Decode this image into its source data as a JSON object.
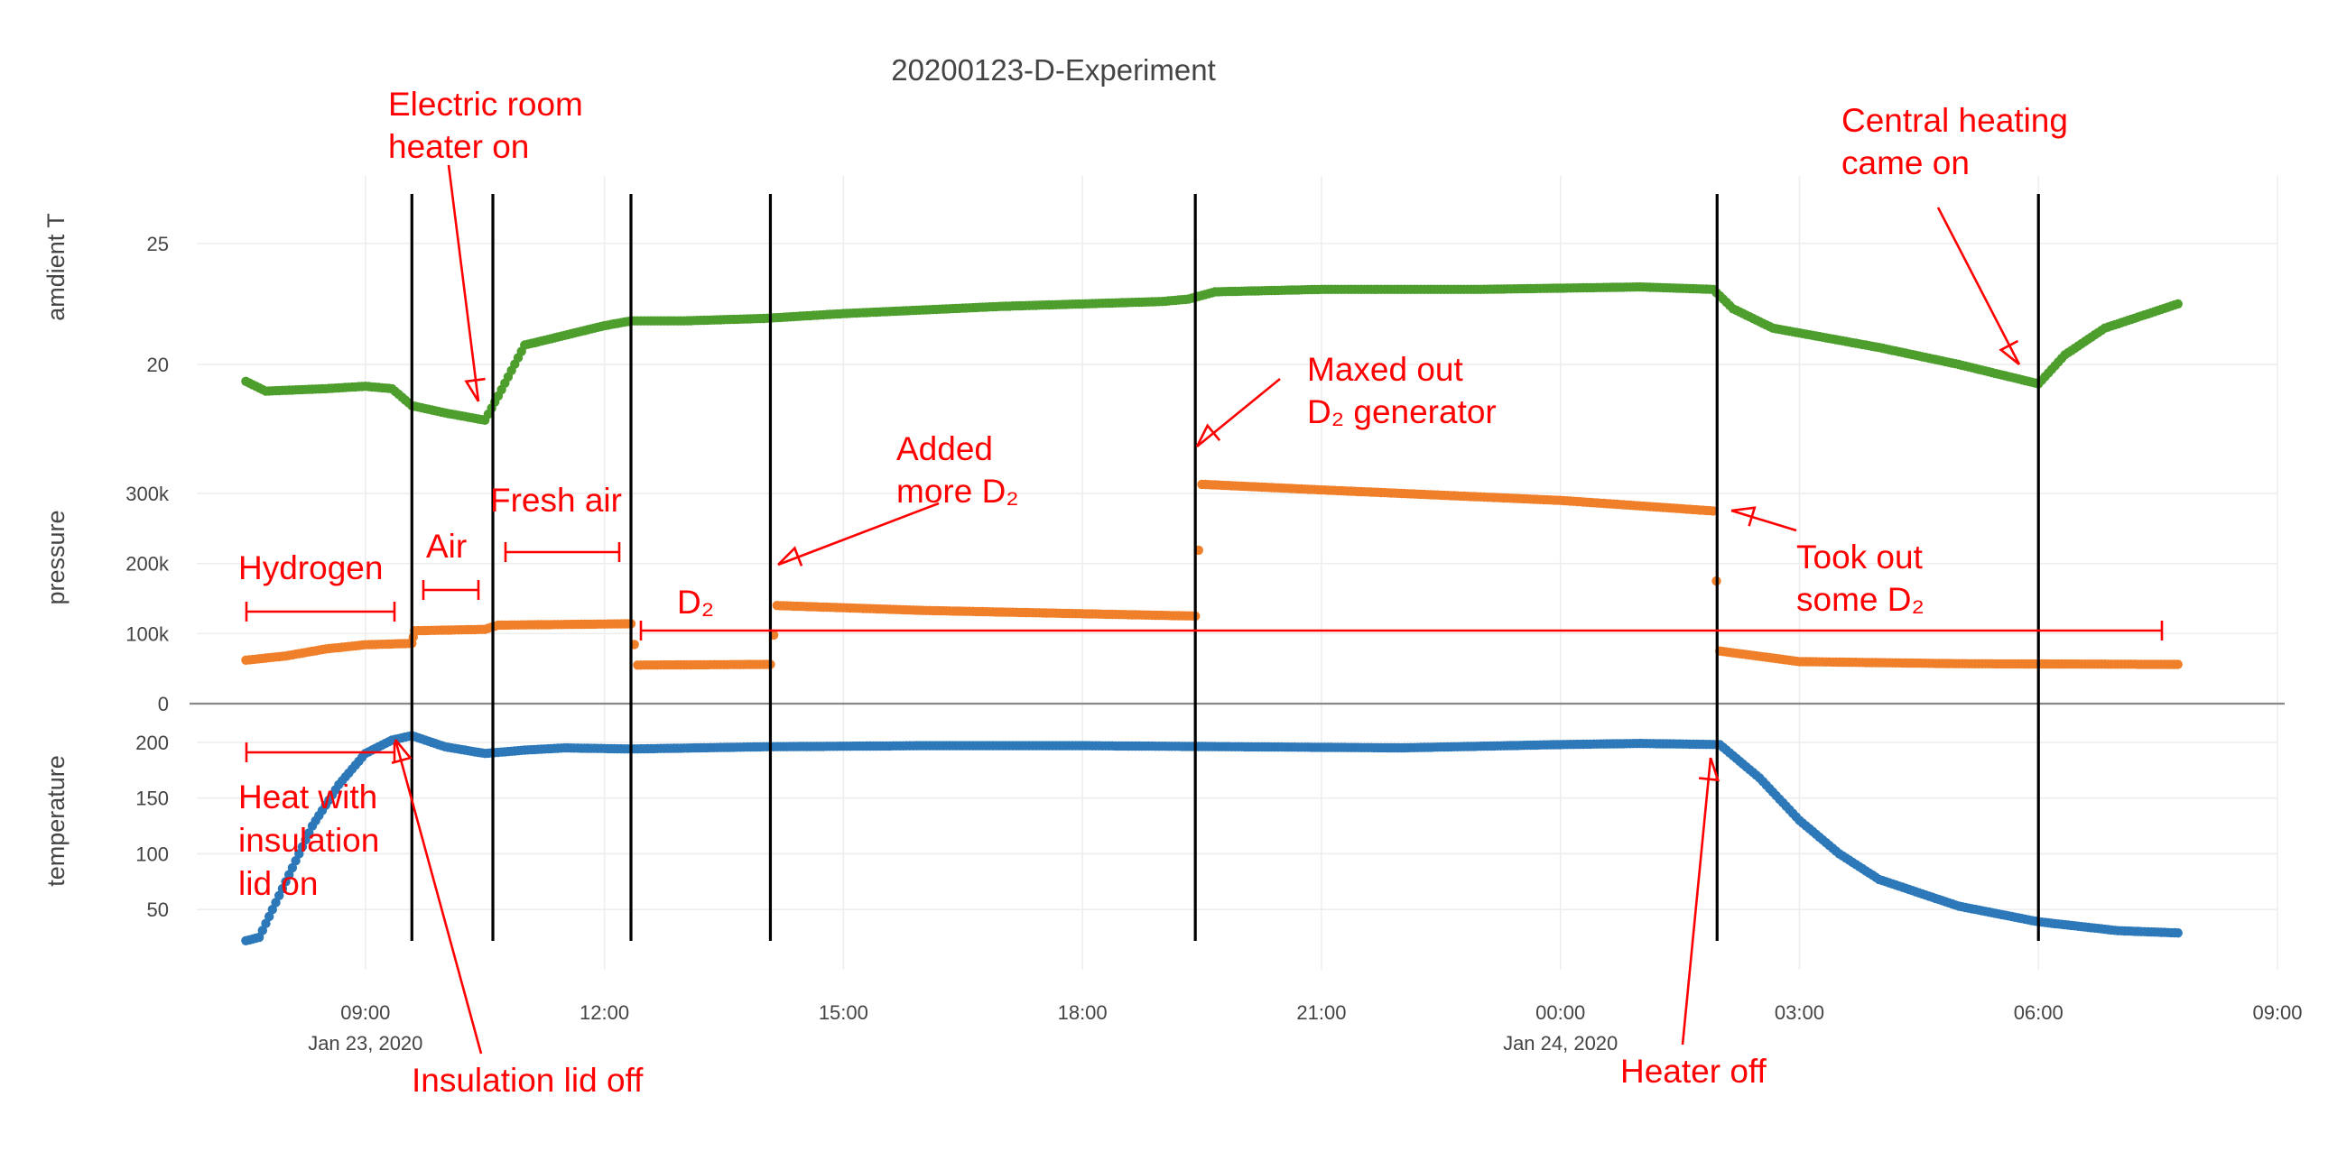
{
  "chart_data": {
    "type": "scatter",
    "title": "20200123-D-Experiment",
    "x_tick_labels": [
      {
        "time": "2020-01-23T09:00",
        "label": "09:00",
        "sublabel": "Jan 23, 2020"
      },
      {
        "time": "2020-01-23T12:00",
        "label": "12:00",
        "sublabel": ""
      },
      {
        "time": "2020-01-23T15:00",
        "label": "15:00",
        "sublabel": ""
      },
      {
        "time": "2020-01-23T18:00",
        "label": "18:00",
        "sublabel": ""
      },
      {
        "time": "2020-01-23T21:00",
        "label": "21:00",
        "sublabel": ""
      },
      {
        "time": "2020-01-24T00:00",
        "label": "00:00",
        "sublabel": "Jan 24, 2020"
      },
      {
        "time": "2020-01-24T03:00",
        "label": "03:00",
        "sublabel": ""
      },
      {
        "time": "2020-01-24T06:00",
        "label": "06:00",
        "sublabel": ""
      },
      {
        "time": "2020-01-24T09:00",
        "label": "09:00",
        "sublabel": ""
      }
    ],
    "xlim": [
      "2020-01-23T06:53",
      "2020-01-24T09:00"
    ],
    "panels": [
      {
        "id": "ambient",
        "ylabel": "amdient T",
        "ylim": [
          16.5,
          27.3
        ],
        "yticks": [
          {
            "value": 20,
            "label": "20"
          },
          {
            "value": 25,
            "label": "25"
          }
        ],
        "color": "#4d9e2c",
        "series": {
          "name": "amdient T",
          "x": [
            "2020-01-23T07:30",
            "2020-01-23T07:45",
            "2020-01-23T08:30",
            "2020-01-23T09:00",
            "2020-01-23T09:20",
            "2020-01-23T09:35",
            "2020-01-23T10:00",
            "2020-01-23T10:30",
            "2020-01-23T10:40",
            "2020-01-23T11:00",
            "2020-01-23T11:30",
            "2020-01-23T12:00",
            "2020-01-23T12:20",
            "2020-01-23T12:35",
            "2020-01-23T13:00",
            "2020-01-23T14:00",
            "2020-01-23T15:00",
            "2020-01-23T17:00",
            "2020-01-23T19:00",
            "2020-01-23T19:20",
            "2020-01-23T19:40",
            "2020-01-23T21:00",
            "2020-01-23T23:00",
            "2020-01-24T01:00",
            "2020-01-24T01:55",
            "2020-01-24T02:10",
            "2020-01-24T02:40",
            "2020-01-24T04:00",
            "2020-01-24T05:00",
            "2020-01-24T06:00",
            "2020-01-24T06:20",
            "2020-01-24T06:50",
            "2020-01-24T07:45"
          ],
          "y": [
            19.3,
            18.9,
            19.0,
            19.1,
            19.0,
            18.3,
            18.0,
            17.7,
            18.7,
            20.8,
            21.2,
            21.6,
            21.8,
            21.8,
            21.8,
            21.9,
            22.1,
            22.4,
            22.6,
            22.7,
            23.0,
            23.1,
            23.1,
            23.2,
            23.1,
            22.3,
            21.5,
            20.7,
            20.0,
            19.2,
            20.4,
            21.5,
            22.5
          ]
        }
      },
      {
        "id": "pressure",
        "ylabel": "pressure",
        "ylim": [
          0,
          345000
        ],
        "yticks": [
          {
            "value": 0,
            "label": "0"
          },
          {
            "value": 100000,
            "label": "100k"
          },
          {
            "value": 200000,
            "label": "200k"
          },
          {
            "value": 300000,
            "label": "300k"
          }
        ],
        "color": "#f07f2a",
        "series": {
          "name": "pressure",
          "x": [
            "2020-01-23T07:30",
            "2020-01-23T08:00",
            "2020-01-23T08:30",
            "2020-01-23T09:00",
            "2020-01-23T09:35",
            "2020-01-23T09:37",
            "2020-01-23T10:30",
            "2020-01-23T10:40",
            "2020-01-23T12:20",
            "2020-01-23T12:25",
            "2020-01-23T14:05",
            "2020-01-23T14:10",
            "2020-01-23T16:00",
            "2020-01-23T19:25",
            "2020-01-23T19:30",
            "2020-01-23T21:00",
            "2020-01-24T00:00",
            "2020-01-24T01:55",
            "2020-01-24T02:00",
            "2020-01-24T03:00",
            "2020-01-24T05:00",
            "2020-01-24T07:45"
          ],
          "y": [
            62000,
            68000,
            78000,
            84000,
            86000,
            104000,
            106000,
            112000,
            114000,
            55000,
            56000,
            140000,
            133000,
            125000,
            313000,
            305000,
            290000,
            275000,
            75000,
            60000,
            57000,
            56000
          ]
        }
      },
      {
        "id": "temperature",
        "ylabel": "temperature",
        "ylim": [
          0,
          225
        ],
        "yticks": [
          {
            "value": 50,
            "label": "50"
          },
          {
            "value": 100,
            "label": "100"
          },
          {
            "value": 150,
            "label": "150"
          },
          {
            "value": 200,
            "label": "200"
          }
        ],
        "color": "#2c78b8",
        "series": {
          "name": "temperature",
          "x": [
            "2020-01-23T07:30",
            "2020-01-23T07:40",
            "2020-01-23T08:00",
            "2020-01-23T08:20",
            "2020-01-23T08:40",
            "2020-01-23T09:00",
            "2020-01-23T09:20",
            "2020-01-23T09:35",
            "2020-01-23T10:00",
            "2020-01-23T10:30",
            "2020-01-23T11:00",
            "2020-01-23T11:30",
            "2020-01-23T12:20",
            "2020-01-23T14:00",
            "2020-01-23T16:00",
            "2020-01-23T18:00",
            "2020-01-23T20:00",
            "2020-01-23T22:00",
            "2020-01-24T00:00",
            "2020-01-24T01:00",
            "2020-01-24T02:00",
            "2020-01-24T02:30",
            "2020-01-24T03:00",
            "2020-01-24T03:30",
            "2020-01-24T04:00",
            "2020-01-24T05:00",
            "2020-01-24T06:00",
            "2020-01-24T07:00",
            "2020-01-24T07:45"
          ],
          "y": [
            22,
            25,
            75,
            125,
            162,
            190,
            202,
            206,
            196,
            190,
            193,
            195,
            194,
            196,
            197,
            197,
            196,
            195,
            198,
            199,
            198,
            168,
            130,
            100,
            77,
            53,
            39,
            31,
            29
          ]
        }
      }
    ],
    "vertical_lines": [
      "2020-01-23T09:35",
      "2020-01-23T10:36",
      "2020-01-23T12:20",
      "2020-01-23T14:05",
      "2020-01-23T19:25",
      "2020-01-24T01:58",
      "2020-01-24T06:00"
    ],
    "annotations": {
      "electric_heater": [
        "Electric room",
        "heater on"
      ],
      "hydrogen": "Hydrogen",
      "air": "Air",
      "fresh_air": "Fresh air",
      "d2": "D₂",
      "added_more": [
        "Added",
        "more D₂"
      ],
      "maxed_out": [
        "Maxed out",
        "D₂ generator"
      ],
      "took_out": [
        "Took out",
        "some D₂"
      ],
      "central_heating": [
        "Central heating",
        "came on"
      ],
      "heat_with_lid": [
        "Heat with",
        "insulation",
        "lid on"
      ],
      "insulation_lid_off": "Insulation lid off",
      "heater_off": "Heater off"
    }
  }
}
